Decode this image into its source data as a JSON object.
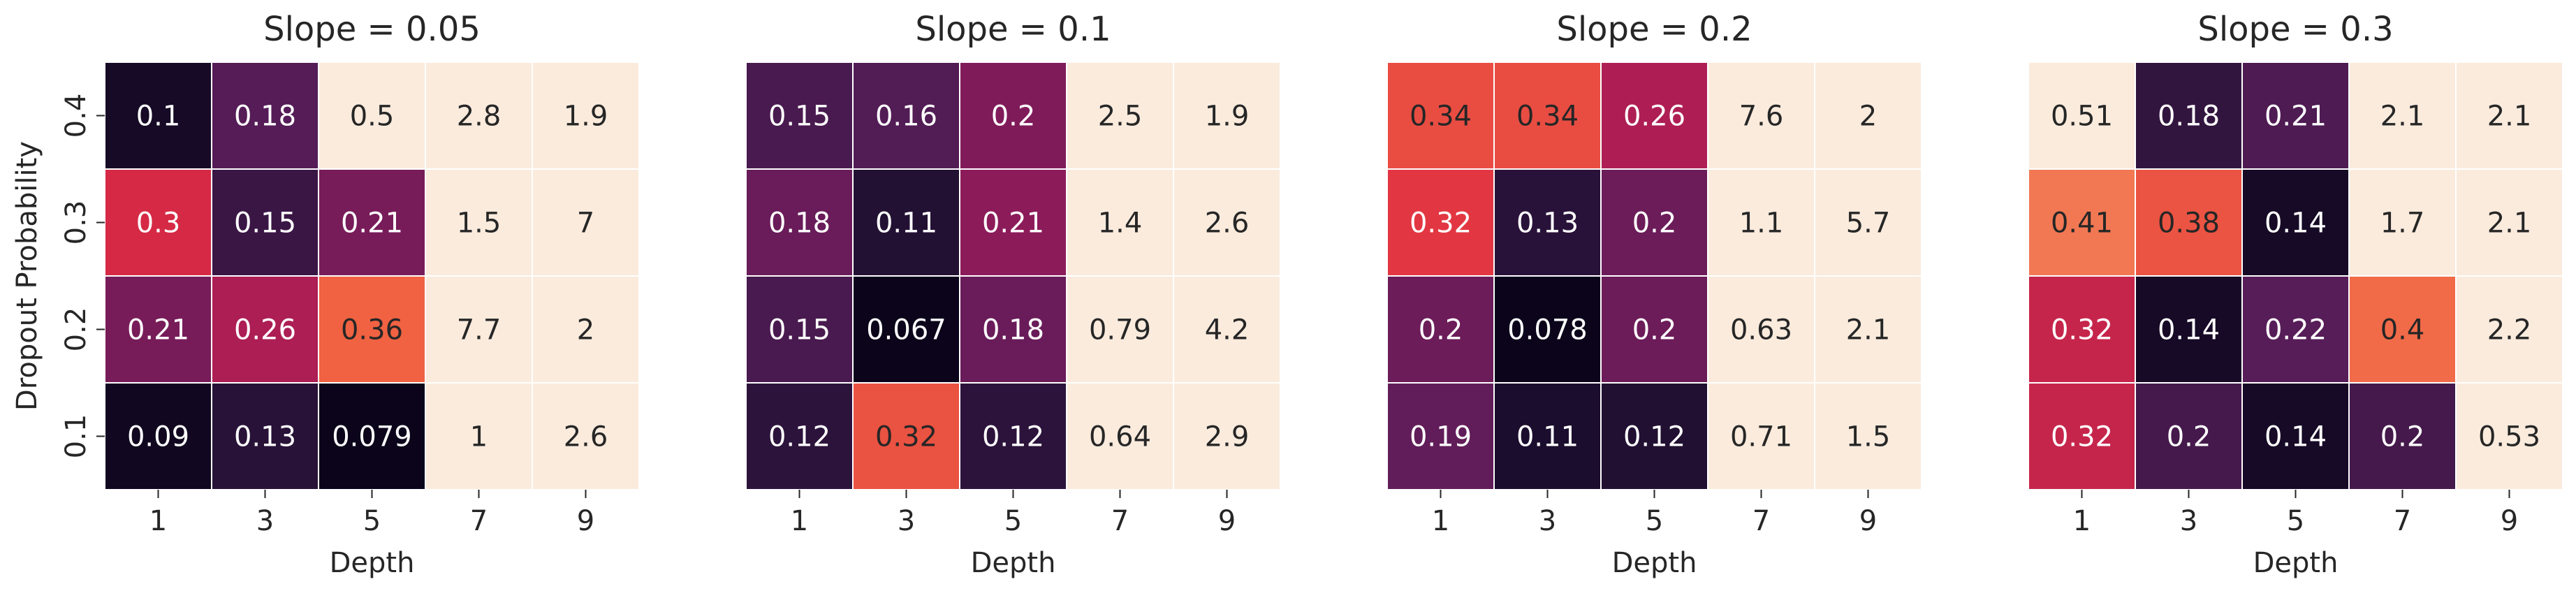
{
  "chart_data": [
    {
      "type": "heatmap",
      "title": "Slope = 0.05",
      "xlabel": "Depth",
      "ylabel": "Dropout Probability",
      "x_categories": [
        "1",
        "3",
        "5",
        "7",
        "9"
      ],
      "y_categories": [
        "0.4",
        "0.3",
        "0.2",
        "0.1"
      ],
      "values": [
        [
          0.1,
          0.18,
          0.5,
          2.8,
          1.9
        ],
        [
          0.3,
          0.15,
          0.21,
          1.5,
          7
        ],
        [
          0.21,
          0.26,
          0.36,
          7.7,
          2
        ],
        [
          0.09,
          0.13,
          0.079,
          1,
          2.6
        ]
      ],
      "labels": [
        [
          "0.1",
          "0.18",
          "0.5",
          "2.8",
          "1.9"
        ],
        [
          "0.3",
          "0.15",
          "0.21",
          "1.5",
          "7"
        ],
        [
          "0.21",
          "0.26",
          "0.36",
          "7.7",
          "2"
        ],
        [
          "0.09",
          "0.13",
          "0.079",
          "1",
          "2.6"
        ]
      ],
      "color_range": [
        0.079,
        0.45
      ]
    },
    {
      "type": "heatmap",
      "title": "Slope = 0.1",
      "xlabel": "Depth",
      "ylabel": "",
      "x_categories": [
        "1",
        "3",
        "5",
        "7",
        "9"
      ],
      "y_categories": [
        "0.4",
        "0.3",
        "0.2",
        "0.1"
      ],
      "values": [
        [
          0.15,
          0.16,
          0.2,
          2.5,
          1.9
        ],
        [
          0.18,
          0.11,
          0.21,
          1.4,
          2.6
        ],
        [
          0.15,
          0.067,
          0.18,
          0.79,
          4.2
        ],
        [
          0.12,
          0.32,
          0.12,
          0.64,
          2.9
        ]
      ],
      "labels": [
        [
          "0.15",
          "0.16",
          "0.2",
          "2.5",
          "1.9"
        ],
        [
          "0.18",
          "0.11",
          "0.21",
          "1.4",
          "2.6"
        ],
        [
          "0.15",
          "0.067",
          "0.18",
          "0.79",
          "4.2"
        ],
        [
          "0.12",
          "0.32",
          "0.12",
          "0.64",
          "2.9"
        ]
      ],
      "color_range": [
        0.067,
        0.42
      ]
    },
    {
      "type": "heatmap",
      "title": "Slope = 0.2",
      "xlabel": "Depth",
      "ylabel": "",
      "x_categories": [
        "1",
        "3",
        "5",
        "7",
        "9"
      ],
      "y_categories": [
        "0.4",
        "0.3",
        "0.2",
        "0.1"
      ],
      "values": [
        [
          0.34,
          0.34,
          0.26,
          7.6,
          2
        ],
        [
          0.32,
          0.13,
          0.2,
          1.1,
          5.7
        ],
        [
          0.2,
          0.078,
          0.2,
          0.63,
          2.1
        ],
        [
          0.19,
          0.11,
          0.12,
          0.71,
          1.5
        ]
      ],
      "labels": [
        [
          "0.34",
          "0.34",
          "0.26",
          "7.6",
          "2"
        ],
        [
          "0.32",
          "0.13",
          "0.2",
          "1.1",
          "5.7"
        ],
        [
          "0.2",
          "0.078",
          "0.2",
          "0.63",
          "2.1"
        ],
        [
          "0.19",
          "0.11",
          "0.12",
          "0.71",
          "1.5"
        ]
      ],
      "color_range": [
        0.078,
        0.45
      ]
    },
    {
      "type": "heatmap",
      "title": "Slope = 0.3",
      "xlabel": "Depth",
      "ylabel": "",
      "x_categories": [
        "1",
        "3",
        "5",
        "7",
        "9"
      ],
      "y_categories": [
        "0.4",
        "0.3",
        "0.2",
        "0.1"
      ],
      "values": [
        [
          0.51,
          0.18,
          0.21,
          2.1,
          2.1
        ],
        [
          0.41,
          0.38,
          0.14,
          1.7,
          2.1
        ],
        [
          0.32,
          0.14,
          0.22,
          0.4,
          2.2
        ],
        [
          0.32,
          0.2,
          0.14,
          0.2,
          0.53
        ]
      ],
      "labels": [
        [
          "0.51",
          "0.18",
          "0.21",
          "2.1",
          "2.1"
        ],
        [
          "0.41",
          "0.38",
          "0.14",
          "1.7",
          "2.1"
        ],
        [
          "0.32",
          "0.14",
          "0.22",
          "0.4",
          "2.2"
        ],
        [
          "0.32",
          "0.2",
          "0.14",
          "0.2",
          "0.53"
        ]
      ],
      "color_range": [
        0.12,
        0.48
      ]
    }
  ],
  "colors": {
    "colormap": "rocket",
    "cell_border": "#ffffff",
    "text_dark": "#262626",
    "text_light": "#ffffff",
    "axis_text": "#262626"
  }
}
